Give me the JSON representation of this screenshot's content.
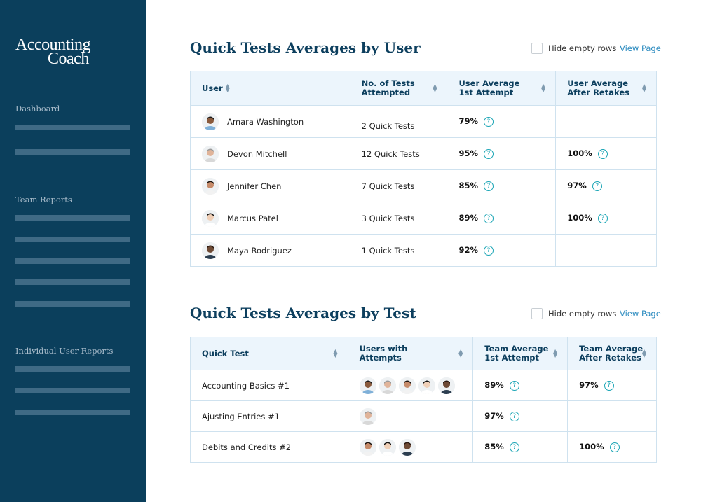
{
  "brand": {
    "line1": "Accounting",
    "line2": "Coach"
  },
  "sidebar": {
    "sections": [
      "Dashboard",
      "Team Reports",
      "Individual User Reports"
    ]
  },
  "colors": {
    "sidebar": "#0b3f5c",
    "title": "#0d3f5e",
    "help": "#1aa5b5",
    "link": "#2a8abf"
  },
  "user_table": {
    "title": "Quick Tests Averages by User",
    "hide_label": "Hide empty rows",
    "view_label": "View Page",
    "headers": [
      "User",
      "No. of Tests Attempted",
      "User Average 1st Attempt",
      "User Average After Retakes"
    ],
    "rows": [
      {
        "user": "Amara Washington",
        "tests": "2 Quick Tests",
        "first": "79%",
        "after": ""
      },
      {
        "user": "Devon Mitchell",
        "tests": "12 Quick Tests",
        "first": "95%",
        "after": "100%"
      },
      {
        "user": "Jennifer Chen",
        "tests": "7 Quick Tests",
        "first": "85%",
        "after": "97%"
      },
      {
        "user": "Marcus Patel",
        "tests": "3 Quick Tests",
        "first": "89%",
        "after": "100%"
      },
      {
        "user": "Maya Rodriguez",
        "tests": "1 Quick Tests",
        "first": "92%",
        "after": ""
      }
    ]
  },
  "test_table": {
    "title": "Quick Tests Averages by Test",
    "hide_label": "Hide empty rows",
    "view_label": "View Page",
    "headers": [
      "Quick Test",
      "Users with Attempts",
      "Team Average 1st Attempt",
      "Team Average After Retakes"
    ],
    "rows": [
      {
        "test": "Accounting Basics #1",
        "users": [
          0,
          1,
          2,
          3,
          4
        ],
        "first": "89%",
        "after": "97%"
      },
      {
        "test": "Ajusting Entries #1",
        "users": [
          1
        ],
        "first": "97%",
        "after": ""
      },
      {
        "test": "Debits and Credits #2",
        "users": [
          2,
          3,
          4
        ],
        "first": "85%",
        "after": "100%"
      }
    ]
  }
}
